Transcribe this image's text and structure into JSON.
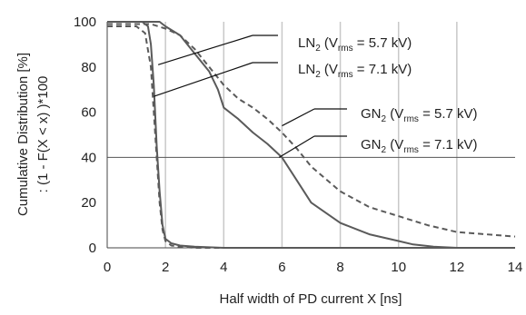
{
  "chart_data": {
    "type": "line",
    "title": "",
    "xlabel": "Half width of PD current X [ns]",
    "ylabel_line1": "Cumulative Distribution [%]",
    "ylabel_line2": ": (1 - F(X < x) )*100",
    "xlim": [
      0,
      14
    ],
    "ylim": [
      0,
      100
    ],
    "xticks": [
      "0",
      "2",
      "4",
      "6",
      "8",
      "10",
      "12",
      "14"
    ],
    "yticks": [
      "0",
      "20",
      "40",
      "60",
      "80",
      "100"
    ],
    "grid": "vertical",
    "reference_line_y": 40,
    "series": [
      {
        "name": "LN2 (Vrms = 5.7 kV)",
        "style": "dashed",
        "color": "#5a5a5a",
        "x": [
          0,
          1.0,
          1.3,
          1.5,
          1.6,
          1.7,
          1.8,
          1.9,
          2.0,
          2.2,
          2.5,
          3.0,
          4.0,
          14
        ],
        "y": [
          98,
          98,
          95,
          80,
          60,
          40,
          20,
          8,
          3,
          1,
          0.5,
          0,
          0,
          0
        ]
      },
      {
        "name": "LN2 (Vrms = 7.1 kV)",
        "style": "solid",
        "color": "#5a5a5a",
        "x": [
          0,
          1.2,
          1.4,
          1.5,
          1.6,
          1.7,
          1.8,
          1.9,
          2.0,
          2.2,
          2.5,
          3.0,
          4.0,
          14
        ],
        "y": [
          100,
          100,
          98,
          90,
          72,
          45,
          25,
          10,
          4,
          2,
          1,
          0.5,
          0,
          0
        ]
      },
      {
        "name": "GN2 (Vrms = 5.7 kV)",
        "style": "dashed",
        "color": "#5a5a5a",
        "x": [
          0,
          1.5,
          2.0,
          2.5,
          3.0,
          3.5,
          4.0,
          4.5,
          5.0,
          5.5,
          6.0,
          6.5,
          7.0,
          8.0,
          9.0,
          10.0,
          11.0,
          12.0,
          13.0,
          14.0
        ],
        "y": [
          99,
          99,
          97,
          94,
          88,
          80,
          72,
          66,
          62,
          57,
          51,
          44,
          36,
          25,
          18,
          14,
          10,
          7,
          6,
          5
        ]
      },
      {
        "name": "GN2 (Vrms = 7.1 kV)",
        "style": "solid",
        "color": "#5a5a5a",
        "x": [
          0,
          1.8,
          2.0,
          2.5,
          3.0,
          3.5,
          3.8,
          4.0,
          4.5,
          5.0,
          5.5,
          6.0,
          6.5,
          7.0,
          8.0,
          9.0,
          10.0,
          10.5,
          11.0,
          11.2,
          12.0,
          14.0
        ],
        "y": [
          100,
          100,
          98,
          94,
          86,
          78,
          70,
          62,
          57,
          51,
          46,
          40,
          30,
          20,
          11,
          6,
          3,
          1.5,
          0.8,
          0.5,
          0,
          0
        ]
      }
    ],
    "annotations": [
      {
        "base": "LN",
        "sub1": "2",
        "mid": " (V",
        "sub2": "rms",
        "tail": " = 5.7 kV)",
        "target_x": 1.75,
        "target_y": 81
      },
      {
        "base": "LN",
        "sub1": "2",
        "mid": " (V",
        "sub2": "rms",
        "tail": " = 7.1 kV)",
        "target_x": 1.6,
        "target_y": 67
      },
      {
        "base": "GN",
        "sub1": "2",
        "mid": " (V",
        "sub2": "rms",
        "tail": " = 5.7 kV)",
        "target_x": 6.0,
        "target_y": 54
      },
      {
        "base": "GN",
        "sub1": "2",
        "mid": " (V",
        "sub2": "rms",
        "tail": " = 7.1 kV)",
        "target_x": 5.9,
        "target_y": 40
      }
    ]
  }
}
